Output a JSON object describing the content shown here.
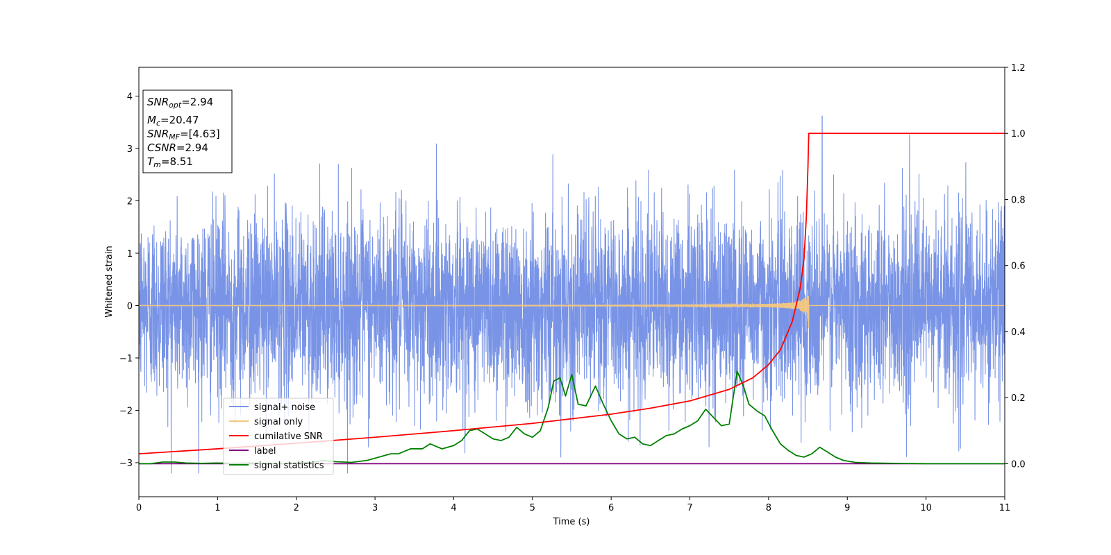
{
  "chart_data": {
    "type": "line",
    "xlabel": "Time (s)",
    "ylabel": "Whitened strain",
    "xlim": [
      0,
      11
    ],
    "ylim": [
      -3.65,
      4.55
    ],
    "y2lim": [
      -0.1,
      1.2
    ],
    "x_ticks": [
      "0",
      "1",
      "2",
      "3",
      "4",
      "5",
      "6",
      "7",
      "8",
      "9",
      "10",
      "11"
    ],
    "y_ticks": [
      "−3",
      "−2",
      "−1",
      "0",
      "1",
      "2",
      "3",
      "4"
    ],
    "y2_ticks": [
      "0.0",
      "0.2",
      "0.4",
      "0.6",
      "0.8",
      "1.0",
      "1.2"
    ],
    "grid": false,
    "legend_placement": "lower-left",
    "annotation": {
      "snr_opt": {
        "symbol": "SNR",
        "sub": "opt",
        "value": "=2.94"
      },
      "mc": {
        "symbol": "M",
        "sub": "c",
        "value": "=20.47"
      },
      "snr_mf": {
        "symbol": "SNR",
        "sub": "MF",
        "value": "=[4.63]"
      },
      "csnr": {
        "symbol": "CSNR",
        "sub": "",
        "value": "=2.94"
      },
      "tm": {
        "symbol": "T",
        "sub": "m",
        "value": "=8.51"
      }
    },
    "series": [
      {
        "name": "signal+ noise",
        "axis": "left",
        "color": "#7994e6",
        "kind": "noise",
        "description_values": {
          "std": 0.9,
          "min": -3.2,
          "max": 3.62,
          "t_max_spike": 8.68
        }
      },
      {
        "name": "signal only",
        "axis": "left",
        "color": "#f5c77e",
        "kind": "chirp",
        "merger_time": 8.51,
        "peak_amplitude": 0.45
      },
      {
        "name": "cumilative SNR",
        "axis": "right",
        "color": "#ff0000",
        "x": [
          0,
          1,
          2,
          3,
          4,
          5,
          6,
          6.5,
          7,
          7.5,
          7.8,
          8.0,
          8.15,
          8.3,
          8.4,
          8.45,
          8.48,
          8.5,
          8.51,
          9,
          10,
          11
        ],
        "y": [
          0.03,
          0.045,
          0.062,
          0.08,
          0.1,
          0.122,
          0.15,
          0.168,
          0.19,
          0.225,
          0.26,
          0.3,
          0.345,
          0.43,
          0.53,
          0.62,
          0.75,
          0.9,
          1.0,
          1.0,
          1.0,
          1.0
        ]
      },
      {
        "name": "label",
        "axis": "right",
        "color": "#800080",
        "x": [
          0,
          11
        ],
        "y": [
          0,
          0
        ]
      },
      {
        "name": "signal statistics",
        "axis": "right",
        "color": "#008000",
        "x": [
          0,
          0.15,
          0.3,
          0.45,
          0.6,
          0.8,
          1.0,
          1.2,
          1.4,
          1.6,
          1.8,
          2.0,
          2.2,
          2.35,
          2.5,
          2.7,
          2.9,
          3.05,
          3.2,
          3.3,
          3.45,
          3.6,
          3.7,
          3.85,
          4.0,
          4.1,
          4.2,
          4.3,
          4.4,
          4.5,
          4.6,
          4.7,
          4.8,
          4.9,
          5.0,
          5.1,
          5.2,
          5.27,
          5.35,
          5.42,
          5.5,
          5.58,
          5.68,
          5.8,
          5.9,
          6.0,
          6.1,
          6.2,
          6.3,
          6.4,
          6.5,
          6.6,
          6.7,
          6.8,
          6.9,
          7.0,
          7.1,
          7.2,
          7.3,
          7.4,
          7.5,
          7.6,
          7.68,
          7.75,
          7.85,
          7.95,
          8.05,
          8.15,
          8.25,
          8.35,
          8.45,
          8.55,
          8.65,
          8.75,
          8.85,
          8.95,
          9.1,
          9.3,
          9.6,
          10.0,
          10.5,
          11.0
        ],
        "y": [
          0.0,
          0.0,
          0.005,
          0.005,
          0.002,
          0.001,
          0.002,
          0.001,
          0.002,
          0.001,
          0.0,
          0.002,
          0.004,
          0.01,
          0.006,
          0.004,
          0.01,
          0.02,
          0.03,
          0.03,
          0.045,
          0.045,
          0.06,
          0.045,
          0.055,
          0.07,
          0.1,
          0.105,
          0.09,
          0.075,
          0.07,
          0.08,
          0.11,
          0.09,
          0.08,
          0.1,
          0.17,
          0.25,
          0.26,
          0.205,
          0.27,
          0.18,
          0.175,
          0.235,
          0.18,
          0.13,
          0.09,
          0.075,
          0.08,
          0.06,
          0.055,
          0.07,
          0.085,
          0.09,
          0.105,
          0.115,
          0.13,
          0.165,
          0.14,
          0.115,
          0.12,
          0.28,
          0.235,
          0.18,
          0.16,
          0.145,
          0.1,
          0.06,
          0.04,
          0.025,
          0.02,
          0.03,
          0.05,
          0.035,
          0.02,
          0.01,
          0.004,
          0.002,
          0.001,
          0.0,
          0.0,
          0.0
        ]
      }
    ]
  }
}
